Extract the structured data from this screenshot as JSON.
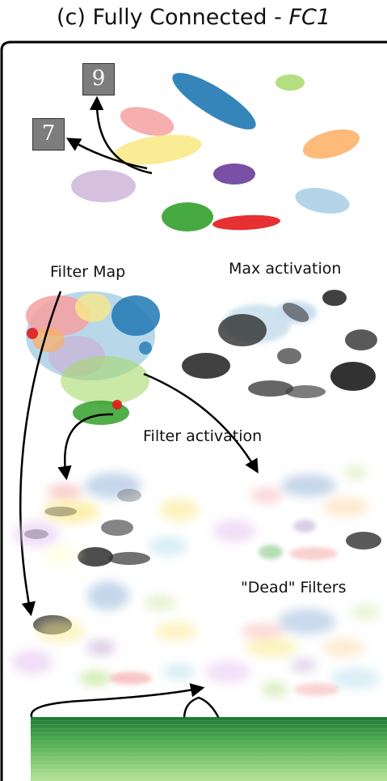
{
  "title": {
    "prefix": "(c) Fully Connected - ",
    "layer": "FC1"
  },
  "labels": {
    "filter_map": "Filter Map",
    "max_activation": "Max activation",
    "filter_activation": "Filter activation",
    "dead_filters": "\"Dead\" Filters"
  },
  "digits": [
    "9",
    "7"
  ],
  "colors": {
    "class_0": "#f4a0a0",
    "class_1": "#1f78b4",
    "class_2": "#a6d96a",
    "class_3": "#f9e98a",
    "class_4": "#fdae61",
    "class_5": "#6a3d9a",
    "class_6": "#cab2d6",
    "class_7": "#a6cee3",
    "class_8": "#33a02c",
    "class_9": "#e31a1c",
    "bar_dark": "#1e7a34",
    "bar_light": "#b6e29a"
  }
}
